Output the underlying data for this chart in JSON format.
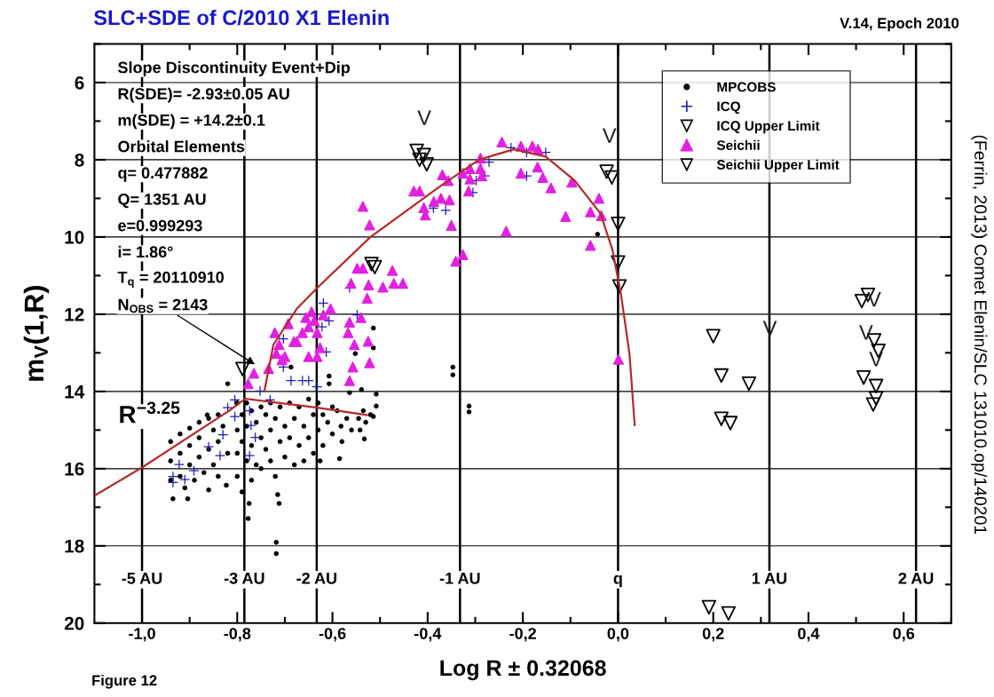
{
  "chart_data": {
    "type": "scatter",
    "title": "SLC+SDE of C/2010 X1 Elenin",
    "xlabel": "Log R ± 0.32068",
    "ylabel": "m$_{V}$(1,R)",
    "xlim": [
      -1.1,
      0.7
    ],
    "ylim": [
      20,
      5
    ],
    "xticks": [
      {
        "value": -1.0,
        "label": "-1,0"
      },
      {
        "value": -0.8,
        "label": "-0,8"
      },
      {
        "value": -0.6,
        "label": "-0,6"
      },
      {
        "value": -0.4,
        "label": "-0,4"
      },
      {
        "value": -0.2,
        "label": "-0,2"
      },
      {
        "value": 0.0,
        "label": "0,0"
      },
      {
        "value": 0.2,
        "label": "0,2"
      },
      {
        "value": 0.4,
        "label": "0,4"
      },
      {
        "value": 0.6,
        "label": "0,6"
      }
    ],
    "yticks": [
      6,
      8,
      10,
      12,
      14,
      16,
      18,
      20
    ],
    "grid": "y",
    "legend": "top right",
    "series": [
      {
        "name": "MPCOBS",
        "type": "scatter",
        "marker": "circle",
        "color": "#000000",
        "x": [
          -0.94,
          -0.94,
          -0.94,
          -0.935,
          -0.92,
          -0.92,
          -0.92,
          -0.91,
          -0.9,
          -0.9,
          -0.9,
          -0.904,
          -0.89,
          -0.88,
          -0.88,
          -0.88,
          -0.87,
          -0.86,
          -0.86,
          -0.86,
          -0.863,
          -0.85,
          -0.85,
          -0.84,
          -0.84,
          -0.84,
          -0.83,
          -0.823,
          -0.82,
          -0.82,
          -0.8,
          -0.8,
          -0.8,
          -0.8,
          -0.79,
          -0.79,
          -0.79,
          -0.78,
          -0.78,
          -0.78,
          -0.777,
          -0.775,
          -0.77,
          -0.77,
          -0.77,
          -0.76,
          -0.76,
          -0.75,
          -0.75,
          -0.75,
          -0.74,
          -0.74,
          -0.73,
          -0.73,
          -0.73,
          -0.72,
          -0.72,
          -0.715,
          -0.712,
          -0.718,
          -0.718,
          -0.71,
          -0.71,
          -0.7,
          -0.7,
          -0.69,
          -0.69,
          -0.687,
          -0.68,
          -0.68,
          -0.67,
          -0.67,
          -0.66,
          -0.66,
          -0.65,
          -0.65,
          -0.64,
          -0.64,
          -0.63,
          -0.63,
          -0.626,
          -0.62,
          -0.62,
          -0.61,
          -0.607,
          -0.607,
          -0.6,
          -0.6,
          -0.59,
          -0.585,
          -0.582,
          -0.58,
          -0.57,
          -0.564,
          -0.56,
          -0.552,
          -0.545,
          -0.542,
          -0.539,
          -0.535,
          -0.533,
          -0.53,
          -0.52,
          -0.514,
          -0.514,
          -0.514,
          -0.508,
          -0.508,
          -0.347,
          -0.347,
          -0.313,
          -0.313,
          -0.043
        ],
        "values": [
          15.3,
          15.8,
          16.3,
          16.78,
          15.1,
          15.6,
          16.2,
          16.5,
          14.95,
          15.4,
          15.9,
          16.78,
          16.3,
          14.8,
          15.2,
          15.7,
          16.1,
          14.7,
          15.5,
          16.55,
          14.61,
          15.0,
          15.9,
          14.6,
          15.3,
          16.2,
          14.9,
          16.43,
          15.6,
          13.8,
          14.3,
          15.0,
          15.6,
          16.2,
          14.6,
          15.3,
          16.6,
          14.3,
          14.9,
          15.8,
          17.29,
          16.9,
          14.5,
          15.4,
          16.3,
          14.8,
          15.9,
          14.4,
          15.2,
          16.0,
          14.6,
          15.5,
          14.3,
          15.0,
          15.8,
          14.7,
          16.2,
          16.67,
          16.9,
          17.91,
          18.2,
          14.4,
          15.3,
          14.9,
          15.7,
          14.3,
          15.2,
          13.37,
          14.7,
          15.9,
          14.4,
          15.4,
          14.9,
          15.8,
          14.2,
          15.2,
          14.6,
          15.6,
          14.3,
          15.0,
          15.8,
          14.6,
          15.4,
          14.8,
          13.6,
          13.8,
          14.4,
          15.1,
          14.5,
          15.74,
          14.9,
          15.3,
          14.7,
          14.03,
          15.0,
          13.02,
          14.7,
          15.0,
          13.95,
          14.5,
          15.23,
          14.8,
          14.6,
          12.36,
          12.87,
          14.65,
          14.07,
          14.38,
          13.37,
          13.57,
          14.38,
          14.53,
          9.93
        ]
      },
      {
        "name": "ICQ",
        "type": "scatter",
        "marker": "cross",
        "color": "#1c1cb4",
        "x": [
          -0.619,
          -0.607,
          -0.622,
          -0.703,
          -0.703,
          -0.687,
          -0.663,
          -0.65,
          -0.632,
          -0.613,
          -0.564,
          -0.548,
          -0.805,
          -0.805,
          -0.82,
          -0.752,
          -0.731,
          -0.83,
          -0.836,
          -0.86,
          -0.891,
          -0.922,
          -0.935,
          -0.935,
          -0.91,
          -0.774,
          -0.771,
          -0.774,
          -0.762,
          -0.225,
          -0.192,
          -0.152,
          -0.271,
          -0.28,
          -0.298,
          -0.305,
          -0.362,
          -0.388,
          -0.192
        ],
        "values": [
          11.71,
          12.17,
          12.33,
          12.64,
          13.37,
          13.72,
          13.72,
          13.72,
          13.88,
          12.98,
          11.32,
          12.02,
          14.22,
          14.65,
          14.42,
          13.99,
          14.22,
          15.12,
          15.66,
          15.43,
          16.05,
          15.89,
          16.2,
          16.36,
          16.28,
          14.5,
          14.88,
          15.66,
          15.19,
          7.69,
          7.81,
          7.81,
          8.06,
          8.42,
          8.54,
          8.85,
          9.31,
          9.25,
          8.42
        ]
      },
      {
        "name": "ICQ Upper Limit",
        "type": "scatter",
        "marker": "triangle_down",
        "color": "#000000",
        "x": [
          -0.423,
          -0.402,
          -0.417,
          -0.408,
          0.2,
          0.217,
          0.275,
          0.217,
          0.236,
          0.512,
          0.525,
          0.516,
          0.538,
          0.547,
          0.542,
          0.542,
          0.536,
          0.191,
          0.232
        ],
        "values": [
          7.77,
          8.12,
          8.0,
          7.88,
          12.57,
          13.59,
          13.8,
          14.71,
          14.82,
          11.66,
          11.5,
          13.64,
          12.68,
          12.95,
          13.86,
          14.18,
          14.34,
          19.59,
          19.75
        ]
      },
      {
        "name": "Seichii",
        "type": "scatter",
        "marker": "triangle",
        "color": "#e022e0",
        "x": [
          -0.536,
          -0.522,
          -0.548,
          -0.536,
          -0.474,
          -0.471,
          -0.452,
          -0.561,
          -0.524,
          -0.494,
          -0.527,
          -0.564,
          -0.54,
          -0.567,
          -0.554,
          -0.525,
          -0.522,
          -0.557,
          -0.564,
          -0.644,
          -0.656,
          -0.638,
          -0.619,
          -0.604,
          -0.65,
          -0.632,
          -0.663,
          -0.681,
          -0.721,
          -0.712,
          -0.7,
          -0.693,
          -0.675,
          -0.65,
          -0.632,
          -0.626,
          -0.734,
          -0.765,
          -0.777,
          -0.718,
          -0.706,
          -0.429,
          -0.417,
          -0.408,
          -0.405,
          -0.387,
          -0.372,
          -0.354,
          -0.369,
          -0.357,
          -0.35,
          -0.341,
          -0.326,
          -0.326,
          -0.311,
          -0.311,
          -0.289,
          -0.289,
          -0.286,
          -0.314,
          -0.244,
          -0.235,
          -0.204,
          -0.18,
          -0.168,
          -0.204,
          -0.169,
          -0.158,
          -0.141,
          -0.097,
          -0.11,
          -0.04,
          -0.058,
          -0.035,
          -0.058,
          0.001
        ],
        "values": [
          9.21,
          9.69,
          10.81,
          10.81,
          10.87,
          11.2,
          11.2,
          11.2,
          11.24,
          11.3,
          11.59,
          12.21,
          12.09,
          12.48,
          12.79,
          12.7,
          13.26,
          13.37,
          13.72,
          11.94,
          12.09,
          12.17,
          12.02,
          11.86,
          12.33,
          12.48,
          12.48,
          12.71,
          12.48,
          12.79,
          13.1,
          12.25,
          12.71,
          13.1,
          13.1,
          12.87,
          13.41,
          13.53,
          13.8,
          13.02,
          13.18,
          8.81,
          8.81,
          9.24,
          9.43,
          9.08,
          9.0,
          9.04,
          8.39,
          8.54,
          9.7,
          10.63,
          10.46,
          8.35,
          8.5,
          8.23,
          7.96,
          8.23,
          8.42,
          8.81,
          7.54,
          9.85,
          7.65,
          7.65,
          7.73,
          8.35,
          8.19,
          8.46,
          8.73,
          8.58,
          9.47,
          9.0,
          9.35,
          9.45,
          10.22,
          13.17
        ]
      },
      {
        "name": "Seichii Upper Limit",
        "type": "scatter",
        "marker": "triangle_down",
        "color": "#000000",
        "x": [
          -0.024,
          -0.013,
          0.0,
          0.0,
          0.003,
          -0.518,
          -0.511,
          -0.789
        ],
        "values": [
          8.31,
          8.46,
          9.66,
          10.66,
          11.28,
          10.7,
          10.78,
          13.42
        ]
      },
      {
        "type": "line",
        "marker": "none",
        "color": "#b52a2a",
        "x": [
          -1.1,
          -1.0,
          -0.817,
          -0.783
        ],
        "values": [
          16.7,
          15.97,
          14.5,
          14.19
        ]
      },
      {
        "type": "line",
        "marker": "none",
        "color": "#b52a2a",
        "x": [
          -0.783,
          -0.632,
          -0.527
        ],
        "values": [
          14.19,
          14.42,
          14.61
        ]
      },
      {
        "type": "line",
        "marker": "none",
        "color": "#b52a2a",
        "x": [
          -0.743,
          -0.724,
          -0.675,
          -0.632,
          -0.52,
          -0.372,
          -0.292,
          -0.219,
          -0.152,
          -0.091,
          -0.037,
          -0.012,
          0.006,
          0.024,
          0.035
        ],
        "values": [
          13.99,
          12.79,
          11.86,
          11.32,
          10.0,
          8.67,
          8.0,
          7.73,
          7.92,
          8.54,
          9.39,
          10.32,
          11.47,
          13.02,
          14.87
        ]
      }
    ],
    "ref_lines": [
      {
        "axis": "x",
        "value": -1.0,
        "label": "-5 AU"
      },
      {
        "axis": "x",
        "value": -0.785,
        "label": "-3 AU"
      },
      {
        "axis": "x",
        "value": -0.633,
        "label": "-2 AU"
      },
      {
        "axis": "x",
        "value": -0.332,
        "label": "-1 AU"
      },
      {
        "axis": "x",
        "value": 0.0,
        "label": "q"
      },
      {
        "axis": "x",
        "value": 0.318,
        "label": "1 AU"
      },
      {
        "axis": "x",
        "value": 0.626,
        "label": "2 AU"
      }
    ],
    "annotations": [
      "V.14, Epoch 2010",
      "(Ferrin, 2013) Comet Elenin/SLC 131010.op/140201",
      "Figure 12",
      "V",
      "V",
      "V",
      "R$^{−3.25}$",
      "Slope Discontinuity Event+Dip",
      "R(SDE)= -2.93±0.05 AU",
      "m(SDE) = +14.2±0.1",
      "Orbital Elements",
      "q= 0.477882",
      "Q= 1351 AU",
      "e=0.999293",
      "i= 1.86°",
      "T$_{q}$ = 20110910",
      {
        "text": "N$_{OBS}$ = 2143",
        "x": -0.763,
        "y": 13.3
      },
      {
        "text": "V",
        "x": 0.319,
        "y": 12.41
      },
      {
        "text": "V",
        "x": 0.521,
        "y": 12.52
      },
      {
        "text": "V",
        "x": 0.542,
        "y": 13.21
      }
    ]
  }
}
